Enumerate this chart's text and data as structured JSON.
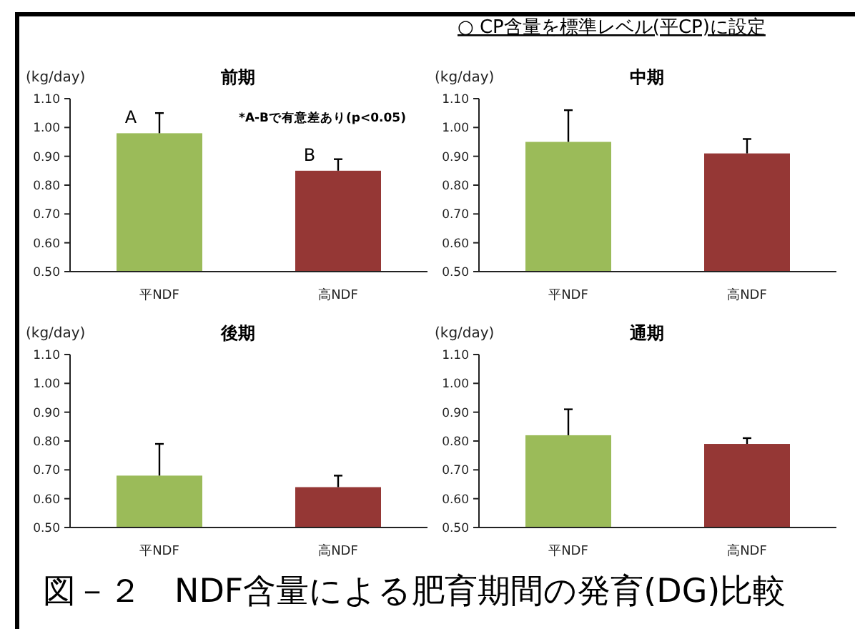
{
  "chart_data": [
    {
      "type": "bar",
      "title": "前期",
      "ylabel": "(kg/day)",
      "categories": [
        "平NDF",
        "高NDF"
      ],
      "colors": [
        "#9bbb59",
        "#953735"
      ],
      "values": [
        0.98,
        0.85
      ],
      "errors": [
        [
          0.98,
          1.05
        ],
        [
          0.85,
          0.89
        ]
      ],
      "ylim": [
        0.5,
        1.1
      ],
      "yticks": [
        {
          "value": 0.5,
          "label": "0.50"
        },
        {
          "value": 0.6,
          "label": "0.60"
        },
        {
          "value": 0.7,
          "label": "0.70"
        },
        {
          "value": 0.8,
          "label": "0.80"
        },
        {
          "value": 0.9,
          "label": "0.90"
        },
        {
          "value": 1.0,
          "label": "1.00"
        },
        {
          "value": 1.1,
          "label": "1.10"
        }
      ],
      "annotations": [
        {
          "text": "A",
          "x": "平NDF",
          "y": 0.98
        },
        {
          "text": "B",
          "x": "高NDF",
          "y": 0.85
        },
        "*A-Bで有意差あり(p<0.05)"
      ]
    },
    {
      "type": "bar",
      "title": "中期",
      "ylabel": "(kg/day)",
      "categories": [
        "平NDF",
        "高NDF"
      ],
      "colors": [
        "#9bbb59",
        "#953735"
      ],
      "values": [
        0.95,
        0.91
      ],
      "errors": [
        [
          0.95,
          1.06
        ],
        [
          0.91,
          0.96
        ]
      ],
      "ylim": [
        0.5,
        1.1
      ],
      "yticks": [
        {
          "value": 0.5,
          "label": "0.50"
        },
        {
          "value": 0.6,
          "label": "0.60"
        },
        {
          "value": 0.7,
          "label": "0.70"
        },
        {
          "value": 0.8,
          "label": "0.80"
        },
        {
          "value": 0.9,
          "label": "0.90"
        },
        {
          "value": 1.0,
          "label": "1.00"
        },
        {
          "value": 1.1,
          "label": "1.10"
        }
      ],
      "annotations": [
        "○ CP含量を標準レベル(平CP)に設定"
      ]
    },
    {
      "type": "bar",
      "title": "後期",
      "ylabel": "(kg/day)",
      "categories": [
        "平NDF",
        "高NDF"
      ],
      "colors": [
        "#9bbb59",
        "#953735"
      ],
      "values": [
        0.68,
        0.64
      ],
      "errors": [
        [
          0.68,
          0.79
        ],
        [
          0.64,
          0.68
        ]
      ],
      "ylim": [
        0.5,
        1.1
      ],
      "yticks": [
        {
          "value": 0.5,
          "label": "0.50"
        },
        {
          "value": 0.6,
          "label": "0.60"
        },
        {
          "value": 0.7,
          "label": "0.70"
        },
        {
          "value": 0.8,
          "label": "0.80"
        },
        {
          "value": 0.9,
          "label": "0.90"
        },
        {
          "value": 1.0,
          "label": "1.00"
        },
        {
          "value": 1.1,
          "label": "1.10"
        }
      ],
      "annotations": [
        "図－２　NDF含量による肥育期間の発育(DG)比較"
      ]
    },
    {
      "type": "bar",
      "title": "通期",
      "ylabel": "(kg/day)",
      "categories": [
        "平NDF",
        "高NDF"
      ],
      "colors": [
        "#9bbb59",
        "#953735"
      ],
      "values": [
        0.82,
        0.79
      ],
      "errors": [
        [
          0.82,
          0.91
        ],
        [
          0.79,
          0.81
        ]
      ],
      "ylim": [
        0.5,
        1.1
      ],
      "yticks": [
        {
          "value": 0.5,
          "label": "0.50"
        },
        {
          "value": 0.6,
          "label": "0.60"
        },
        {
          "value": 0.7,
          "label": "0.70"
        },
        {
          "value": 0.8,
          "label": "0.80"
        },
        {
          "value": 0.9,
          "label": "0.90"
        },
        {
          "value": 1.0,
          "label": "1.00"
        },
        {
          "value": 1.1,
          "label": "1.10"
        }
      ]
    }
  ]
}
